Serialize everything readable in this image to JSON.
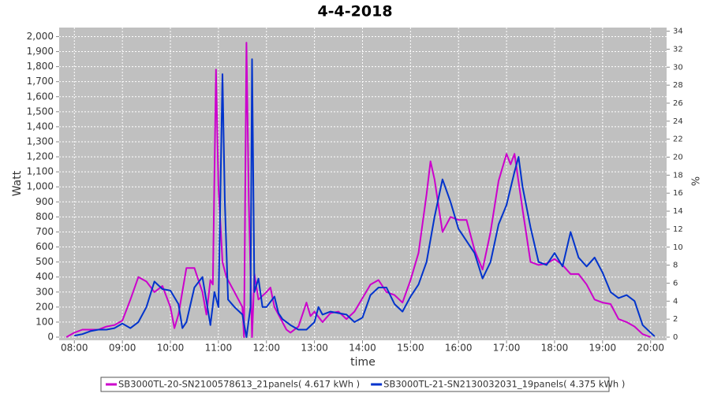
{
  "chart_data": {
    "type": "line",
    "title": "4-4-2018",
    "x_label": "time",
    "y_label": "Watt",
    "y2_label": "%",
    "xlim": [
      "07:41",
      "20:20"
    ],
    "xticks": [
      "08:00",
      "09:00",
      "10:00",
      "11:00",
      "12:00",
      "13:00",
      "14:00",
      "15:00",
      "16:00",
      "17:00",
      "18:00",
      "19:00",
      "20:00"
    ],
    "ylim": [
      0,
      2060
    ],
    "yticks": [
      0,
      100,
      200,
      300,
      400,
      500,
      600,
      700,
      800,
      900,
      {
        "value": 1000,
        "label": "1,000"
      },
      {
        "value": 1100,
        "label": "1,100"
      },
      {
        "value": 1200,
        "label": "1,200"
      },
      {
        "value": 1300,
        "label": "1,300"
      },
      {
        "value": 1400,
        "label": "1,400"
      },
      {
        "value": 1500,
        "label": "1,500"
      },
      {
        "value": 1600,
        "label": "1,600"
      },
      {
        "value": 1700,
        "label": "1,700"
      },
      {
        "value": 1800,
        "label": "1,800"
      },
      {
        "value": 1900,
        "label": "1,900"
      },
      {
        "value": 2000,
        "label": "2,000"
      }
    ],
    "y2lim": [
      0,
      34.4
    ],
    "y2ticks": [
      0,
      2,
      4,
      6,
      8,
      10,
      12,
      14,
      16,
      18,
      20,
      22,
      24,
      26,
      28,
      30,
      32,
      34
    ],
    "grid": true,
    "legend": "bottom",
    "series": [
      {
        "name": "SB3000TL-20-SN2100578613_21panels( 4.617 kWh )",
        "color": "#cc00cc",
        "x": [
          "07:50",
          "08:00",
          "08:10",
          "08:20",
          "08:30",
          "08:40",
          "08:50",
          "09:00",
          "09:10",
          "09:20",
          "09:30",
          "09:40",
          "09:50",
          "10:00",
          "10:05",
          "10:10",
          "10:20",
          "10:30",
          "10:40",
          "10:45",
          "10:50",
          "10:53",
          "10:57",
          "11:00",
          "11:05",
          "11:10",
          "11:20",
          "11:30",
          "11:32",
          "11:35",
          "11:38",
          "11:42",
          "11:45",
          "11:50",
          "12:00",
          "12:05",
          "12:10",
          "12:15",
          "12:20",
          "12:25",
          "12:30",
          "12:40",
          "12:50",
          "12:55",
          "13:00",
          "13:10",
          "13:20",
          "13:30",
          "13:40",
          "13:50",
          "14:00",
          "14:10",
          "14:20",
          "14:30",
          "14:40",
          "14:50",
          "15:00",
          "15:10",
          "15:20",
          "15:25",
          "15:30",
          "15:40",
          "15:50",
          "16:00",
          "16:10",
          "16:20",
          "16:30",
          "16:40",
          "16:50",
          "17:00",
          "17:05",
          "17:10",
          "17:20",
          "17:30",
          "17:40",
          "17:50",
          "18:00",
          "18:10",
          "18:20",
          "18:30",
          "18:40",
          "18:50",
          "19:00",
          "19:10",
          "19:20",
          "19:30",
          "19:40",
          "19:50",
          "20:00"
        ],
        "values": [
          0,
          30,
          50,
          50,
          50,
          70,
          80,
          110,
          250,
          400,
          370,
          300,
          340,
          200,
          60,
          150,
          460,
          460,
          300,
          150,
          380,
          350,
          1780,
          1000,
          500,
          400,
          300,
          200,
          0,
          1960,
          900,
          0,
          420,
          250,
          300,
          330,
          200,
          150,
          100,
          50,
          30,
          70,
          230,
          140,
          170,
          100,
          160,
          170,
          120,
          170,
          260,
          350,
          380,
          300,
          280,
          230,
          380,
          560,
          950,
          1170,
          1050,
          700,
          800,
          780,
          780,
          580,
          450,
          700,
          1040,
          1220,
          1150,
          1220,
          850,
          500,
          480,
          490,
          520,
          480,
          420,
          420,
          350,
          250,
          230,
          220,
          120,
          100,
          70,
          20,
          0
        ]
      },
      {
        "name": "SB3000TL-21-SN2130032031_19panels( 4.375 kWh )",
        "color": "#0033cc",
        "x": [
          "08:00",
          "08:10",
          "08:20",
          "08:30",
          "08:40",
          "08:50",
          "09:00",
          "09:10",
          "09:20",
          "09:30",
          "09:40",
          "09:50",
          "10:00",
          "10:10",
          "10:15",
          "10:20",
          "10:30",
          "10:40",
          "10:50",
          "10:55",
          "11:00",
          "11:05",
          "11:08",
          "11:12",
          "11:20",
          "11:30",
          "11:35",
          "11:40",
          "11:42",
          "11:45",
          "11:50",
          "11:55",
          "12:00",
          "12:10",
          "12:15",
          "12:20",
          "12:30",
          "12:40",
          "12:50",
          "13:00",
          "13:05",
          "13:10",
          "13:20",
          "13:30",
          "13:40",
          "13:50",
          "14:00",
          "14:10",
          "14:20",
          "14:30",
          "14:40",
          "14:50",
          "15:00",
          "15:10",
          "15:20",
          "15:30",
          "15:40",
          "15:50",
          "16:00",
          "16:10",
          "16:20",
          "16:30",
          "16:40",
          "16:50",
          "17:00",
          "17:10",
          "17:15",
          "17:20",
          "17:30",
          "17:40",
          "17:50",
          "18:00",
          "18:10",
          "18:20",
          "18:30",
          "18:40",
          "18:50",
          "19:00",
          "19:10",
          "19:20",
          "19:30",
          "19:40",
          "19:50",
          "20:00",
          "20:05"
        ],
        "values": [
          10,
          20,
          40,
          50,
          50,
          60,
          90,
          60,
          100,
          200,
          370,
          320,
          310,
          220,
          60,
          100,
          330,
          400,
          80,
          300,
          200,
          1750,
          900,
          250,
          200,
          150,
          0,
          200,
          1850,
          300,
          390,
          200,
          200,
          270,
          160,
          120,
          80,
          50,
          50,
          100,
          200,
          150,
          170,
          160,
          150,
          100,
          130,
          280,
          330,
          330,
          220,
          170,
          270,
          350,
          500,
          800,
          1050,
          900,
          720,
          640,
          560,
          390,
          500,
          750,
          880,
          1100,
          1200,
          1000,
          730,
          500,
          480,
          560,
          470,
          700,
          530,
          470,
          530,
          430,
          300,
          260,
          280,
          240,
          80,
          30,
          5
        ]
      }
    ]
  }
}
